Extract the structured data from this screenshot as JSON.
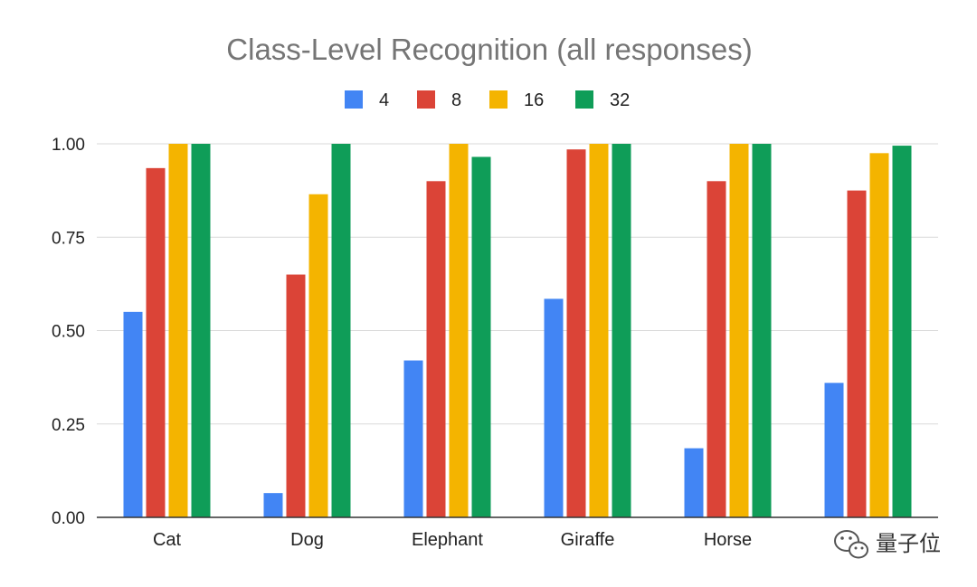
{
  "chart_data": {
    "type": "bar",
    "title": "Class-Level Recognition (all responses)",
    "xlabel": "",
    "ylabel": "",
    "categories": [
      "Cat",
      "Dog",
      "Elephant",
      "Giraffe",
      "Horse",
      ""
    ],
    "series": [
      {
        "name": "4",
        "color": "#4285f4",
        "values": [
          0.55,
          0.065,
          0.42,
          0.585,
          0.185,
          0.36
        ]
      },
      {
        "name": "8",
        "color": "#db4437",
        "values": [
          0.935,
          0.65,
          0.9,
          0.985,
          0.9,
          0.875
        ]
      },
      {
        "name": "16",
        "color": "#f4b400",
        "values": [
          1.0,
          0.865,
          1.0,
          1.0,
          1.0,
          0.975
        ]
      },
      {
        "name": "32",
        "color": "#0f9d58",
        "values": [
          1.0,
          1.0,
          0.965,
          1.0,
          1.0,
          0.995
        ]
      }
    ],
    "ylim": [
      0,
      1
    ],
    "yticks": [
      "0.00",
      "0.25",
      "0.50",
      "0.75",
      "1.00"
    ],
    "grid": true,
    "legend_position": "top-center"
  },
  "watermark": {
    "icon": "wechat-icon",
    "text": "量子位"
  }
}
